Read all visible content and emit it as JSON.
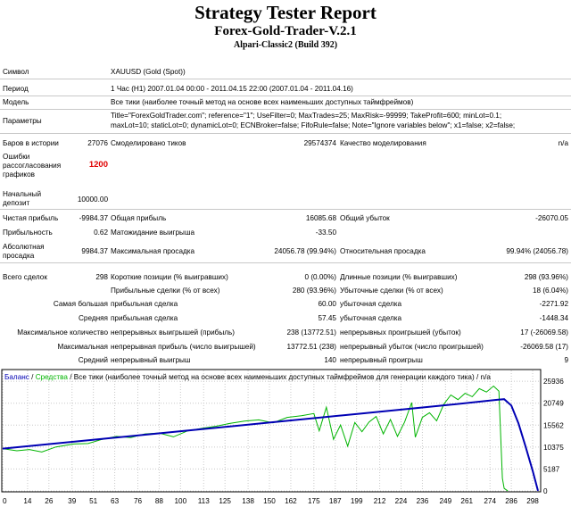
{
  "header": {
    "title": "Strategy Tester Report",
    "ea_name": "Forex-Gold-Trader-V.2.1",
    "server": "Alpari-Classic2 (Build 392)"
  },
  "info": {
    "symbol_label": "Символ",
    "symbol_value": "XAUUSD (Gold (Spot))",
    "period_label": "Период",
    "period_value": "1 Час (H1) 2007.01.04 00:00 - 2011.04.15 22:00 (2007.01.04 - 2011.04.16)",
    "model_label": "Модель",
    "model_value": "Все тики (наиболее точный метод на основе всех наименьших доступных таймфреймов)",
    "params_label": "Параметры",
    "params_line1": "Title=\"ForexGoldTrader.com\"; reference=\"1\"; UseFilter=0; MaxTrades=25; MaxRisk=-99999; TakeProfit=600; minLot=0.1;",
    "params_line2": "maxLot=10; staticLot=0; dynamicLot=0; ECNBroker=false; FifoRule=false; Note=\"Ignore variables below\"; x1=false; x2=false;"
  },
  "stats": {
    "bars_label": "Баров в истории",
    "bars_value": "27076",
    "ticks_label": "Смоделировано тиков",
    "ticks_value": "29574374",
    "quality_label": "Качество моделирования",
    "quality_value": "n/a",
    "errors_label_1": "Ошибки",
    "errors_label_2": "рассогласования",
    "errors_label_3": "графиков",
    "errors_value": "1200",
    "deposit_label_1": "Начальный",
    "deposit_label_2": "депозит",
    "deposit_value": "10000.00",
    "net_label": "Чистая прибыль",
    "net_value": "-9984.37",
    "gross_profit_label": "Общая прибыль",
    "gross_profit_value": "16085.68",
    "gross_loss_label": "Общий убыток",
    "gross_loss_value": "-26070.05",
    "pf_label": "Прибыльность",
    "pf_value": "0.62",
    "expected_label": "Матожидание выигрыша",
    "expected_value": "-33.50",
    "abs_dd_label_1": "Абсолютная",
    "abs_dd_label_2": "просадка",
    "abs_dd_value": "9984.37",
    "max_dd_label": "Максимальная просадка",
    "max_dd_value": "24056.78 (99.94%)",
    "rel_dd_label": "Относительная просадка",
    "rel_dd_value": "99.94% (24056.78)",
    "total_label": "Всего сделок",
    "total_value": "298",
    "short_label": "Короткие позиции (% выигравших)",
    "short_value": "0 (0.00%)",
    "long_label": "Длинные позиции (% выигравших)",
    "long_value": "298 (93.96%)",
    "profit_trades_label": "Прибыльные сделки (% от всех)",
    "profit_trades_value": "280 (93.96%)",
    "loss_trades_label": "Убыточные сделки (% от всех)",
    "loss_trades_value": "18 (6.04%)",
    "largest_label": "Самая большая",
    "largest_profit_label": "прибыльная сделка",
    "largest_profit_value": "60.00",
    "largest_loss_label": "убыточная сделка",
    "largest_loss_value": "-2271.92",
    "average_label": "Средняя",
    "average_profit_label": "прибыльная сделка",
    "average_profit_value": "57.45",
    "average_loss_label": "убыточная сделка",
    "average_loss_value": "-1448.34",
    "max_count_label": "Максимальное количество",
    "max_cons_wins_label": "непрерывных выигрышей (прибыль)",
    "max_cons_wins_value": "238 (13772.51)",
    "max_cons_losses_label": "непрерывных проигрышей (убыток)",
    "max_cons_losses_value": "17 (-26069.58)",
    "maximal_label": "Максимальная",
    "max_cons_profit_label": "непрерывная прибыль (число выигрышей)",
    "max_cons_profit_value": "13772.51 (238)",
    "max_cons_loss_label": "непрерывный убыток (число проигрышей)",
    "max_cons_loss_value": "-26069.58 (17)",
    "avg_cons_label": "Средний",
    "avg_cons_wins_label": "непрерывный выигрыш",
    "avg_cons_wins_value": "140",
    "avg_cons_losses_label": "непрерывный проигрыш",
    "avg_cons_losses_value": "9"
  },
  "chart_data": {
    "type": "line",
    "legend_balance": "Баланс",
    "legend_sep1": " / ",
    "legend_equity": "Средства",
    "legend_rest": " / Все тики (наиболее точный метод на основе всех наименьших доступных таймфреймов для генерации каждого тика) / n/a",
    "colors": {
      "balance": "#0000b4",
      "equity": "#00b400",
      "grid": "#c8c8c8"
    },
    "x_ticks": [
      0,
      14,
      26,
      39,
      51,
      63,
      76,
      88,
      100,
      113,
      125,
      138,
      150,
      162,
      175,
      187,
      199,
      212,
      224,
      236,
      249,
      261,
      274,
      286,
      298
    ],
    "y_ticks": [
      0,
      5187,
      10375,
      15562,
      20749,
      25936
    ],
    "xlim": [
      0,
      302
    ],
    "ylim": [
      0,
      28500
    ],
    "balance": [
      [
        0,
        10000
      ],
      [
        50,
        12060
      ],
      [
        100,
        14120
      ],
      [
        150,
        16180
      ],
      [
        200,
        18240
      ],
      [
        250,
        20300
      ],
      [
        278,
        21560
      ],
      [
        282,
        21700
      ],
      [
        286,
        20200
      ],
      [
        290,
        16000
      ],
      [
        294,
        10500
      ],
      [
        298,
        4800
      ],
      [
        301,
        16
      ]
    ],
    "equity": [
      [
        0,
        10000
      ],
      [
        8,
        9500
      ],
      [
        15,
        9800
      ],
      [
        22,
        9200
      ],
      [
        30,
        10400
      ],
      [
        40,
        11100
      ],
      [
        48,
        11200
      ],
      [
        56,
        12200
      ],
      [
        64,
        12900
      ],
      [
        72,
        12600
      ],
      [
        80,
        13500
      ],
      [
        88,
        13700
      ],
      [
        96,
        12800
      ],
      [
        104,
        14200
      ],
      [
        112,
        14800
      ],
      [
        120,
        15300
      ],
      [
        128,
        16000
      ],
      [
        136,
        16500
      ],
      [
        144,
        16800
      ],
      [
        152,
        16100
      ],
      [
        160,
        17400
      ],
      [
        168,
        17800
      ],
      [
        175,
        18300
      ],
      [
        178,
        14200
      ],
      [
        182,
        19800
      ],
      [
        186,
        12200
      ],
      [
        190,
        15600
      ],
      [
        194,
        10600
      ],
      [
        198,
        16200
      ],
      [
        202,
        14000
      ],
      [
        206,
        16300
      ],
      [
        210,
        17600
      ],
      [
        214,
        13500
      ],
      [
        218,
        16900
      ],
      [
        222,
        12900
      ],
      [
        226,
        16300
      ],
      [
        230,
        20900
      ],
      [
        232,
        12700
      ],
      [
        236,
        17400
      ],
      [
        240,
        18500
      ],
      [
        244,
        16600
      ],
      [
        248,
        20500
      ],
      [
        252,
        22700
      ],
      [
        256,
        21600
      ],
      [
        260,
        23100
      ],
      [
        264,
        22300
      ],
      [
        268,
        24200
      ],
      [
        272,
        23400
      ],
      [
        276,
        24800
      ],
      [
        279,
        23600
      ],
      [
        281,
        3000
      ],
      [
        282,
        600
      ],
      [
        284,
        16
      ]
    ]
  }
}
